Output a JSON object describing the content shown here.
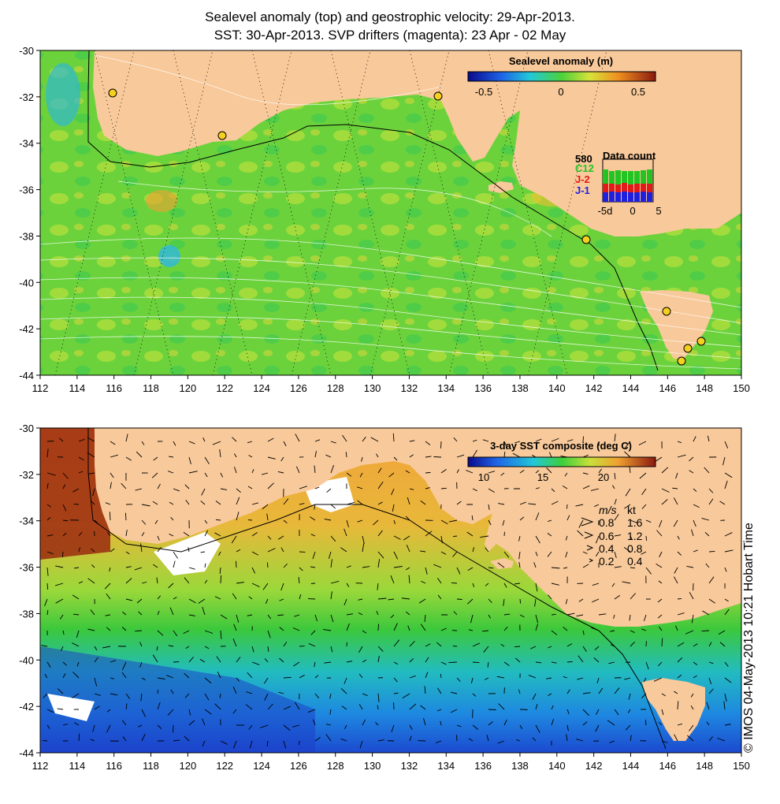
{
  "title": {
    "line1": "Sealevel anomaly (top) and geostrophic velocity: 29-Apr-2013.",
    "line2": "SST: 30-Apr-2013. SVP drifters (magenta): 23 Apr - 02 May"
  },
  "axes": {
    "x_ticks": [
      "112",
      "114",
      "116",
      "118",
      "120",
      "122",
      "124",
      "126",
      "128",
      "130",
      "132",
      "134",
      "136",
      "138",
      "140",
      "142",
      "144",
      "146",
      "148",
      "150"
    ],
    "y_ticks": [
      "-30",
      "-32",
      "-34",
      "-36",
      "-38",
      "-40",
      "-42",
      "-44"
    ],
    "lon_range": [
      112,
      150
    ],
    "lat_range": [
      -30,
      -44
    ]
  },
  "top_panel": {
    "colorbar_title": "Sealevel anomaly (m)",
    "colorbar_ticks": [
      "-0.5",
      "0",
      "0.5"
    ],
    "data_count": {
      "title": "Data count",
      "value": "580",
      "sats": [
        {
          "name": "C12",
          "color": "#22c422"
        },
        {
          "name": "J-2",
          "color": "#e31a1a"
        },
        {
          "name": "J-1",
          "color": "#1f1fe0"
        }
      ],
      "x_ticks": [
        "-5d",
        "0",
        "5"
      ]
    }
  },
  "bottom_panel": {
    "colorbar_title": "3-day SST composite (deg C)",
    "colorbar_ticks": [
      "10",
      "15",
      "20"
    ],
    "legend": {
      "header_ms": "m/s",
      "header_kt": "kt",
      "rows": [
        {
          "ms": "0.8",
          "kt": "1.6"
        },
        {
          "ms": "0.6",
          "kt": "1.2"
        },
        {
          "ms": "0.4",
          "kt": "0.8"
        },
        {
          "ms": "0.2",
          "kt": "0.4"
        }
      ]
    }
  },
  "credit": "© IMOS 04-May-2013 10:21 Hobart Time",
  "colors": {
    "land": "#f8c99a",
    "sla_mid": "#6fd23c",
    "sst_warm": "#f2a23a"
  }
}
